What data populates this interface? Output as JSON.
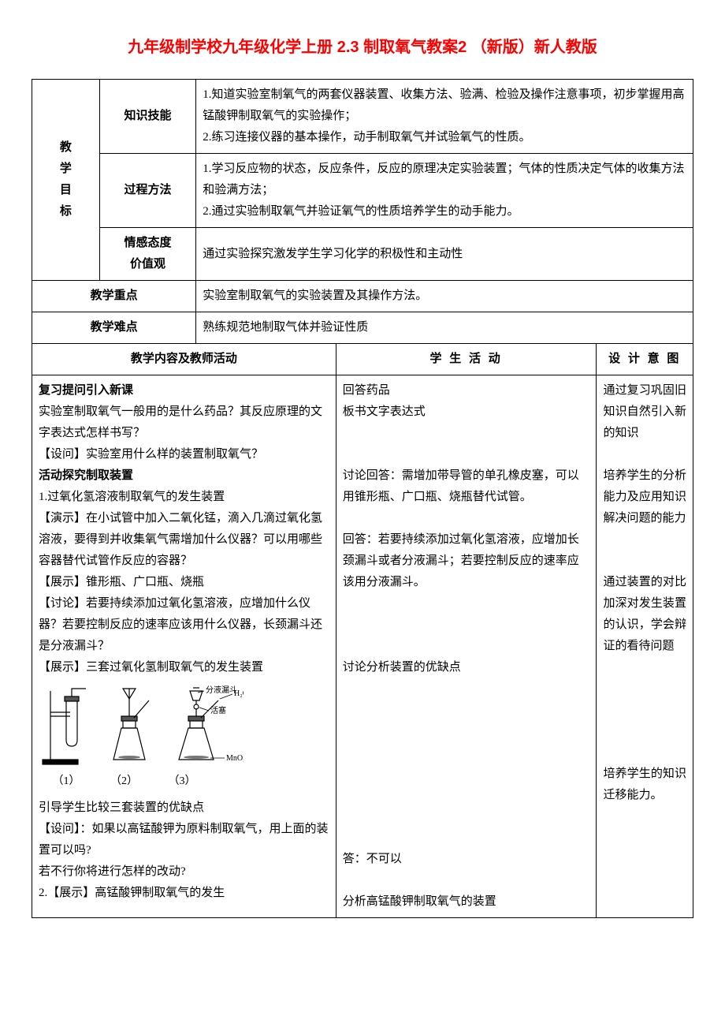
{
  "title": "九年级制学校九年级化学上册 2.3 制取氧气教案2 （新版）新人教版",
  "goals_label": "教学目标",
  "rows": {
    "skill_label": "知识技能",
    "skill_text": "1.知道实验室制氧气的两套仪器装置、收集方法、验满、检验及操作注意事项，初步掌握用高锰酸钾制取氧气的实验操作；\n2.练习连接仪器的基本操作，动手制取氧气并试验氧气的性质。",
    "method_label": "过程方法",
    "method_text": "1.学习反应物的状态，反应条件，反应的原理决定实验装置；气体的性质决定气体的收集方法和验满方法；\n2.通过实验制取氧气并验证氧气的性质培养学生的动手能力。",
    "attitude_label": "情感态度价值观",
    "attitude_text": "通过实验探究激发学生学习化学的积极性和主动性",
    "keypoint_label": "教学重点",
    "keypoint_text": "实验室制取氧气的实验装置及其操作方法。",
    "difficulty_label": "教学难点",
    "difficulty_text": "熟练规范地制取气体并验证性质"
  },
  "headers": {
    "teacher": "教学内容及教师活动",
    "student": "学 生 活 动",
    "intent": "设 计 意 图"
  },
  "section1": {
    "t_title": "复习提问引入新课",
    "t_body": "实验室制取氧气一般用的是什么药品？其反应原理的文字表达式怎样书写？\n【设问】实验室用什么样的装置制取氧气？",
    "s_body": "回答药品\n板书文字表达式",
    "i_body": "通过复习巩固旧知识自然引入新的知识"
  },
  "section2": {
    "t_title": "活动探究制取装置",
    "t_body1": "1.过氧化氢溶液制取氧气的发生装置\n【演示】在小试管中加入二氧化锰，滴入几滴过氧化氢溶液，要得到并收集氧气需增加什么仪器？可以用哪些容器替代试管作反应的容器？\n【展示】锥形瓶、广口瓶、烧瓶\n【讨论】若要持续添加过氧化氢溶液，应增加什么仪器？若要控制反应的速率应该用什么仪器，长颈漏斗还是分液漏斗？\n【展示】三套过氧化氢制取氧气的发生装置",
    "t_body2": "引导学生比较三套装置的优缺点\n【设问】：如果以高锰酸钾为原料制取氧气，用上面的装置可以吗?\n若不行你将进行怎样的改动?\n2.【展示】高锰酸钾制取氧气的发生",
    "s_body": "讨论回答：需增加带导管的单孔橡皮塞，可以用锥形瓶、广口瓶、烧瓶替代试管。\n\n回答：若要持续添加过氧化氢溶液，应增加长颈漏斗或者分液漏斗；若要控制反应的速率应该用分液漏斗。\n\n\n\n讨论分析装置的优缺点\n\n\n\n\n\n\n\n\n答：不可以\n\n分析高锰酸钾制取氧气的装置",
    "i_body": "培养学生的分析能力及应用知识解决问题的能力\n\n\n通过装置的对比加深对发生装置的认识，学会辩证的看待问题\n\n\n\n\n\n培养学生的知识迁移能力。"
  },
  "diagram": {
    "labels": [
      "（1）",
      "（2）",
      "（3）"
    ],
    "ann1": "分液漏斗",
    "ann2": "活塞",
    "ann3": "H₂O₂",
    "ann4": "MnO₂"
  },
  "colors": {
    "title": "#ff0000",
    "border": "#000000",
    "text": "#000000",
    "background": "#ffffff"
  }
}
